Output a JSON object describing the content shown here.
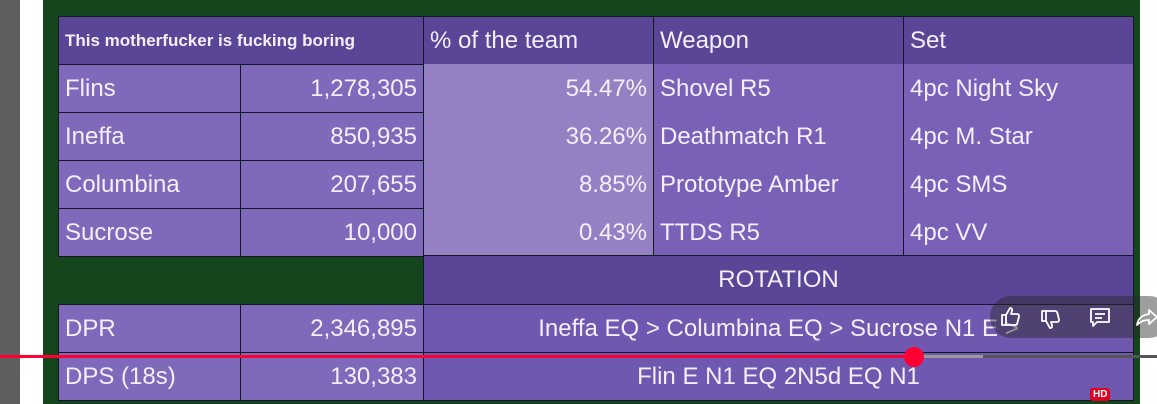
{
  "table": {
    "header": [
      "This motherfucker is fucking boring",
      "% of the team",
      "Weapon",
      "Set"
    ],
    "rows": [
      {
        "name": "Flins",
        "damage": "1,278,305",
        "percent": "54.47%",
        "weapon": "Shovel R5",
        "set": "4pc Night Sky"
      },
      {
        "name": "Ineffa",
        "damage": "850,935",
        "percent": "36.26%",
        "weapon": "Deathmatch R1",
        "set": "4pc M. Star"
      },
      {
        "name": "Columbina",
        "damage": "207,655",
        "percent": "8.85%",
        "weapon": "Prototype Amber",
        "set": "4pc SMS"
      },
      {
        "name": "Sucrose",
        "damage": "10,000",
        "percent": "0.43%",
        "weapon": "TTDS R5",
        "set": "4pc VV"
      }
    ],
    "rotation_label": "ROTATION",
    "rotation_lines": [
      "Ineffa EQ > Columbina EQ > Sucrose N1 E >",
      "Flin E N1 EQ 2N5d EQ N1"
    ],
    "summary": [
      {
        "label": "DPR",
        "value": "2,346,895"
      },
      {
        "label": "DPS (18s)",
        "value": "130,383"
      }
    ]
  },
  "player": {
    "progress_percent": 79,
    "buffered_percent": 85,
    "hd_badge": "HD",
    "icons": [
      "like-icon",
      "dislike-icon",
      "comment-icon",
      "share-icon"
    ],
    "colors": {
      "progress": "#ff0033",
      "buffered": "#9a9a9a"
    }
  }
}
